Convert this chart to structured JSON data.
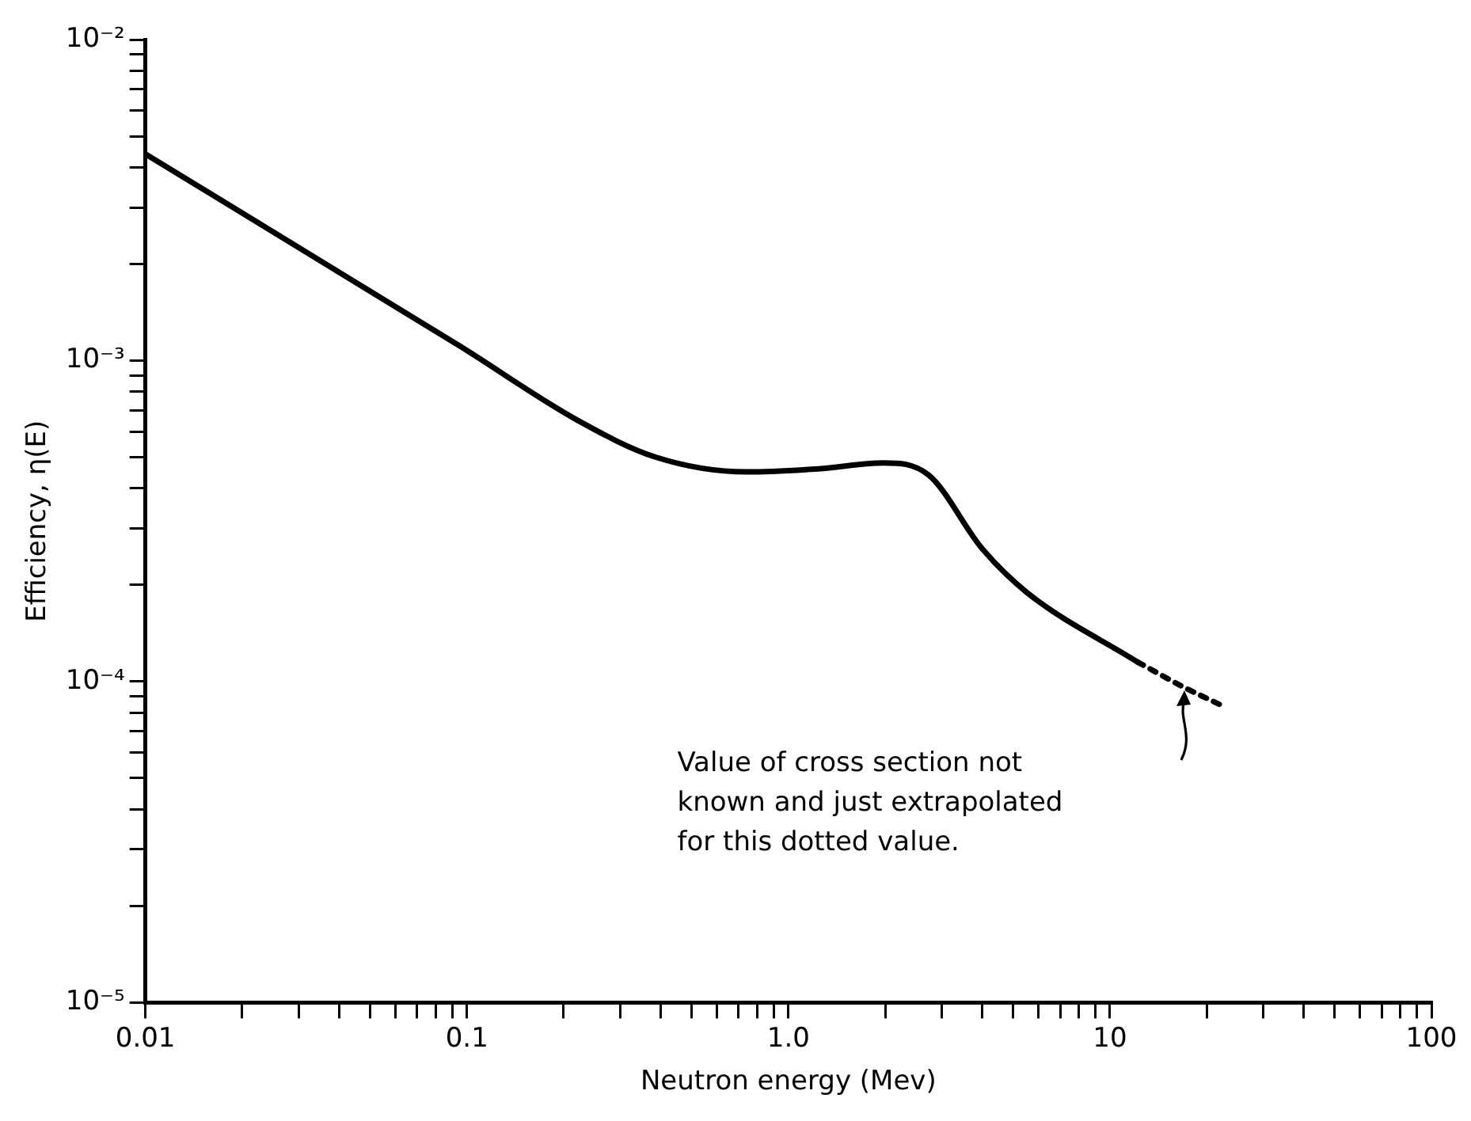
{
  "chart_data": {
    "type": "line",
    "xlabel": "Neutron energy (Mev)",
    "ylabel": "Efficiency, η(E)",
    "log": "xy",
    "grid": false,
    "legend": false,
    "marker": "none",
    "xlim": [
      0.01,
      100
    ],
    "ylim": [
      1e-05,
      0.01
    ],
    "xticks": [
      {
        "value": 0.01,
        "label": "0.01"
      },
      {
        "value": 0.02,
        "label": null
      },
      {
        "value": 0.03,
        "label": null
      },
      {
        "value": 0.04,
        "label": null
      },
      {
        "value": 0.05,
        "label": null
      },
      {
        "value": 0.06,
        "label": null
      },
      {
        "value": 0.07,
        "label": null
      },
      {
        "value": 0.08,
        "label": null
      },
      {
        "value": 0.09,
        "label": null
      },
      {
        "value": 0.1,
        "label": "0.1"
      },
      {
        "value": 0.2,
        "label": null
      },
      {
        "value": 0.3,
        "label": null
      },
      {
        "value": 0.4,
        "label": null
      },
      {
        "value": 0.5,
        "label": null
      },
      {
        "value": 0.6,
        "label": null
      },
      {
        "value": 0.7,
        "label": null
      },
      {
        "value": 0.8,
        "label": null
      },
      {
        "value": 0.9,
        "label": null
      },
      {
        "value": 1,
        "label": "1.0"
      },
      {
        "value": 2,
        "label": null
      },
      {
        "value": 3,
        "label": null
      },
      {
        "value": 4,
        "label": null
      },
      {
        "value": 5,
        "label": null
      },
      {
        "value": 6,
        "label": null
      },
      {
        "value": 7,
        "label": null
      },
      {
        "value": 8,
        "label": null
      },
      {
        "value": 9,
        "label": null
      },
      {
        "value": 10,
        "label": "10"
      },
      {
        "value": 20,
        "label": null
      },
      {
        "value": 30,
        "label": null
      },
      {
        "value": 40,
        "label": null
      },
      {
        "value": 50,
        "label": null
      },
      {
        "value": 60,
        "label": null
      },
      {
        "value": 70,
        "label": null
      },
      {
        "value": 80,
        "label": null
      },
      {
        "value": 90,
        "label": null
      },
      {
        "value": 100,
        "label": "100"
      }
    ],
    "yticks": [
      {
        "value": 1e-05,
        "label": "10⁻⁵"
      },
      {
        "value": 2e-05,
        "label": null
      },
      {
        "value": 3e-05,
        "label": null
      },
      {
        "value": 4e-05,
        "label": null
      },
      {
        "value": 5e-05,
        "label": null
      },
      {
        "value": 6e-05,
        "label": null
      },
      {
        "value": 7e-05,
        "label": null
      },
      {
        "value": 8e-05,
        "label": null
      },
      {
        "value": 9e-05,
        "label": null
      },
      {
        "value": 0.0001,
        "label": "10⁻⁴"
      },
      {
        "value": 0.0002,
        "label": null
      },
      {
        "value": 0.0003,
        "label": null
      },
      {
        "value": 0.0004,
        "label": null
      },
      {
        "value": 0.0005,
        "label": null
      },
      {
        "value": 0.0006,
        "label": null
      },
      {
        "value": 0.0007,
        "label": null
      },
      {
        "value": 0.0008,
        "label": null
      },
      {
        "value": 0.0009,
        "label": null
      },
      {
        "value": 0.001,
        "label": "10⁻³"
      },
      {
        "value": 0.002,
        "label": null
      },
      {
        "value": 0.003,
        "label": null
      },
      {
        "value": 0.004,
        "label": null
      },
      {
        "value": 0.005,
        "label": null
      },
      {
        "value": 0.006,
        "label": null
      },
      {
        "value": 0.007,
        "label": null
      },
      {
        "value": 0.008,
        "label": null
      },
      {
        "value": 0.009,
        "label": null
      },
      {
        "value": 0.01,
        "label": "10⁻²"
      }
    ],
    "series": [
      {
        "color": "#000000",
        "line_style": "solid",
        "x": [
          0.01,
          0.095,
          0.222,
          0.387,
          0.74,
          1.24,
          1.98,
          2.73,
          4.0,
          5.5,
          12.2
        ],
        "values": [
          0.0044,
          0.00111,
          0.00065,
          0.0005,
          0.00045,
          0.00046,
          0.00048,
          0.00044,
          0.00026,
          0.00019,
          0.000115
        ]
      },
      {
        "color": "#000000",
        "line_style": "dotted",
        "x": [
          12.2,
          17,
          23
        ],
        "values": [
          0.000115,
          9.6e-05,
          8.3e-05
        ]
      }
    ],
    "annotations": [
      "Value of cross section not\nknown and just extrapolated\nfor this dotted value."
    ]
  }
}
